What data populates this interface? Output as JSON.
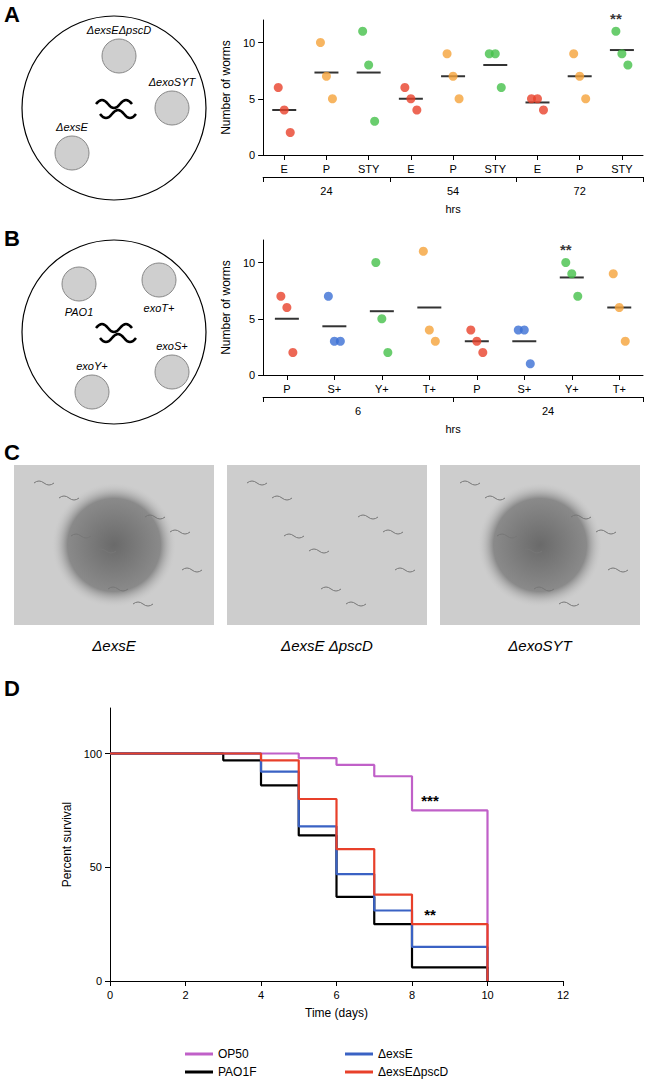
{
  "plates": [
    {
      "panel": "A",
      "labels": [
        "ΔexsEΔpscD",
        "ΔexoSYT",
        "ΔexsE"
      ]
    },
    {
      "panel": "B",
      "labels": [
        "PAO1",
        "exoT+",
        "exoS+",
        "exoY+"
      ]
    }
  ],
  "images": {
    "panel": "C",
    "items": [
      {
        "label": "ΔexsE",
        "colony": true
      },
      {
        "label": "ΔexsE ΔpscD",
        "colony": false
      },
      {
        "label": "ΔexoSYT",
        "colony": true
      }
    ]
  },
  "chart_data": [
    {
      "type": "scatter",
      "y_label": "Number of worms",
      "x_label": "hrs",
      "categories": [
        "E",
        "P",
        "STY",
        "E",
        "P",
        "STY",
        "E",
        "P",
        "STY"
      ],
      "groups": [
        "24",
        "54",
        "72"
      ],
      "colors": [
        "#e8412a",
        "#f5a23a",
        "#45c04a",
        "#e8412a",
        "#f5a23a",
        "#45c04a",
        "#e8412a",
        "#f5a23a",
        "#45c04a"
      ],
      "values": [
        [
          6,
          4,
          2
        ],
        [
          10,
          7,
          5
        ],
        [
          11,
          8,
          3
        ],
        [
          6,
          5,
          4
        ],
        [
          9,
          7,
          5
        ],
        [
          9,
          9,
          6
        ],
        [
          5,
          5,
          4
        ],
        [
          9,
          7,
          5
        ],
        [
          11,
          9,
          8
        ]
      ],
      "means": [
        4,
        7.33,
        7.33,
        5,
        7,
        8,
        4.67,
        7,
        9.33
      ],
      "annotations": [
        {
          "index": 8,
          "text": "**"
        }
      ],
      "ylim": [
        0,
        12
      ],
      "yticks": [
        0,
        5,
        10
      ],
      "grid": false
    },
    {
      "type": "scatter",
      "y_label": "Number of worms",
      "x_label": "hrs",
      "categories": [
        "P",
        "S+",
        "Y+",
        "T+",
        "P",
        "S+",
        "Y+",
        "T+"
      ],
      "groups": [
        "6",
        "24"
      ],
      "colors": [
        "#e8412a",
        "#3b6fd4",
        "#45c04a",
        "#f5a23a",
        "#e8412a",
        "#3b6fd4",
        "#45c04a",
        "#f5a23a"
      ],
      "values": [
        [
          7,
          6,
          2
        ],
        [
          7,
          3,
          3
        ],
        [
          10,
          5,
          2
        ],
        [
          11,
          4,
          3
        ],
        [
          4,
          3,
          2
        ],
        [
          4,
          4,
          1
        ],
        [
          10,
          9,
          7
        ],
        [
          9,
          6,
          3
        ]
      ],
      "means": [
        5,
        4.33,
        5.67,
        6,
        3,
        3,
        8.67,
        6
      ],
      "annotations": [
        {
          "index": 6,
          "text": "**"
        }
      ],
      "ylim": [
        0,
        12
      ],
      "yticks": [
        0,
        5,
        10
      ],
      "grid": false
    },
    {
      "type": "line",
      "panel": "D",
      "line_style": "step",
      "x_label": "Time (days)",
      "y_label": "Percent survival",
      "xlim": [
        0,
        12
      ],
      "xticks": [
        0,
        2,
        4,
        6,
        8,
        10,
        12
      ],
      "ylim": [
        0,
        120
      ],
      "yticks": [
        0,
        50,
        100
      ],
      "grid": false,
      "legend": "bottom",
      "series": [
        {
          "name": "OP50",
          "color": "#c060c8",
          "x": [
            0,
            5,
            6,
            7,
            8,
            10
          ],
          "values": [
            100,
            98,
            95,
            90,
            75,
            0
          ],
          "annotation": {
            "x": 8,
            "text": "***"
          }
        },
        {
          "name": "PAO1F",
          "color": "#000000",
          "x": [
            0,
            3,
            4,
            5,
            6,
            7,
            8,
            10
          ],
          "values": [
            100,
            97,
            86,
            64,
            37,
            25,
            6,
            0
          ]
        },
        {
          "name": "ΔexsE",
          "color": "#3a62c4",
          "x": [
            0,
            4,
            5,
            6,
            7,
            8,
            10
          ],
          "values": [
            100,
            92,
            68,
            47,
            31,
            15,
            0
          ]
        },
        {
          "name": "ΔexsEΔpscD",
          "color": "#e8402a",
          "x": [
            0,
            4,
            5,
            6,
            7,
            8,
            10
          ],
          "values": [
            100,
            97,
            80,
            58,
            38,
            25,
            0
          ],
          "annotation": {
            "x": 8,
            "text": "**"
          }
        }
      ]
    }
  ]
}
